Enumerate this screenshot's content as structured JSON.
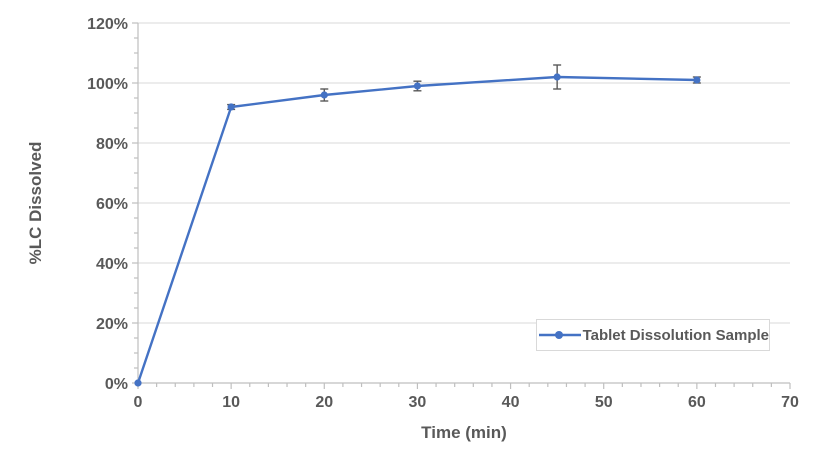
{
  "chart_data": {
    "type": "line",
    "title": "",
    "xlabel": "Time (min)",
    "ylabel": "%LC Dissolved",
    "x": [
      0,
      10,
      20,
      30,
      45,
      60
    ],
    "series": [
      {
        "name": "Tablet Dissolution Sample",
        "values": [
          0,
          92,
          96,
          99,
          102,
          101
        ],
        "error_bars": [
          0,
          0.8,
          2,
          1.6,
          4,
          1
        ]
      }
    ],
    "xlim": [
      0,
      70
    ],
    "ylim": [
      0,
      120
    ],
    "x_major_ticks": [
      0,
      10,
      20,
      30,
      40,
      50,
      60,
      70
    ],
    "x_minor_step": 2,
    "y_major_ticks": [
      0,
      20,
      40,
      60,
      80,
      100,
      120
    ],
    "y_minor_step": 5,
    "y_tick_suffix": "%",
    "grid": "horizontal-major",
    "legend_position": "inside-bottom-right",
    "colors": {
      "series": "#4472C4",
      "grid": "#D9D9D9",
      "axis": "#BFBFBF",
      "text": "#595959",
      "error_bar": "#595959",
      "legend_border": "#D9D9D9",
      "background": "#FFFFFF"
    }
  }
}
